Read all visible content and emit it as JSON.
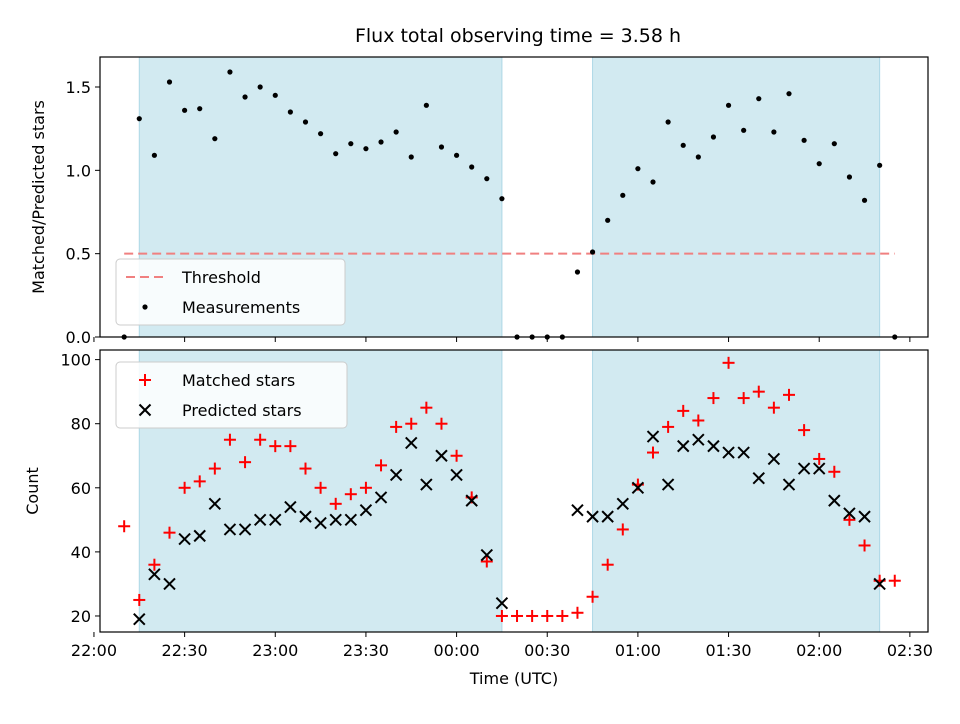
{
  "figure": {
    "title": "Flux total observing time = 3.58 h"
  },
  "colors": {
    "shade": "#add8e6",
    "threshold": "#f08080",
    "matched": "#ff0000",
    "predicted": "#000000",
    "measure": "#000000"
  },
  "chart_data": [
    {
      "type": "scatter",
      "ylabel": "Matched/Predicted stars",
      "xlim": [
        "22:02",
        "02:36"
      ],
      "ylim": [
        0,
        1.68
      ],
      "yticks": [
        "0.0",
        "0.5",
        "1.0",
        "1.5"
      ],
      "shaded_ranges": [
        [
          "22:15",
          "00:15"
        ],
        [
          "00:45",
          "02:20"
        ]
      ],
      "threshold": {
        "name": "Threshold",
        "y": 0.5,
        "x_range": [
          "22:10",
          "02:25"
        ]
      },
      "legend": {
        "position": "lower-left",
        "entries": [
          "Threshold",
          "Measurements"
        ]
      },
      "series": [
        {
          "name": "Measurements",
          "points": [
            [
              "22:10",
              0.0
            ],
            [
              "22:15",
              1.31
            ],
            [
              "22:20",
              1.09
            ],
            [
              "22:25",
              1.53
            ],
            [
              "22:30",
              1.36
            ],
            [
              "22:35",
              1.37
            ],
            [
              "22:40",
              1.19
            ],
            [
              "22:45",
              1.59
            ],
            [
              "22:50",
              1.44
            ],
            [
              "22:55",
              1.5
            ],
            [
              "23:00",
              1.45
            ],
            [
              "23:05",
              1.35
            ],
            [
              "23:10",
              1.29
            ],
            [
              "23:15",
              1.22
            ],
            [
              "23:20",
              1.1
            ],
            [
              "23:25",
              1.16
            ],
            [
              "23:30",
              1.13
            ],
            [
              "23:35",
              1.17
            ],
            [
              "23:40",
              1.23
            ],
            [
              "23:45",
              1.08
            ],
            [
              "23:50",
              1.39
            ],
            [
              "23:55",
              1.14
            ],
            [
              "00:00",
              1.09
            ],
            [
              "00:05",
              1.02
            ],
            [
              "00:10",
              0.95
            ],
            [
              "00:15",
              0.83
            ],
            [
              "00:20",
              0.0
            ],
            [
              "00:25",
              0.0
            ],
            [
              "00:30",
              0.0
            ],
            [
              "00:35",
              0.0
            ],
            [
              "00:40",
              0.39
            ],
            [
              "00:45",
              0.51
            ],
            [
              "00:50",
              0.7
            ],
            [
              "00:55",
              0.85
            ],
            [
              "01:00",
              1.01
            ],
            [
              "01:05",
              0.93
            ],
            [
              "01:10",
              1.29
            ],
            [
              "01:15",
              1.15
            ],
            [
              "01:20",
              1.08
            ],
            [
              "01:25",
              1.2
            ],
            [
              "01:30",
              1.39
            ],
            [
              "01:35",
              1.24
            ],
            [
              "01:40",
              1.43
            ],
            [
              "01:45",
              1.23
            ],
            [
              "01:50",
              1.46
            ],
            [
              "01:55",
              1.18
            ],
            [
              "02:00",
              1.04
            ],
            [
              "02:05",
              1.16
            ],
            [
              "02:10",
              0.96
            ],
            [
              "02:15",
              0.82
            ],
            [
              "02:20",
              1.03
            ],
            [
              "02:25",
              0.0
            ]
          ]
        }
      ]
    },
    {
      "type": "scatter",
      "xlabel": "Time (UTC)",
      "ylabel": "Count",
      "xlim": [
        "22:02",
        "02:36"
      ],
      "ylim": [
        15,
        103
      ],
      "xticks": [
        "22:00",
        "22:30",
        "23:00",
        "23:30",
        "00:00",
        "00:30",
        "01:00",
        "01:30",
        "02:00",
        "02:30"
      ],
      "yticks": [
        "20",
        "40",
        "60",
        "80",
        "100"
      ],
      "shaded_ranges": [
        [
          "22:15",
          "00:15"
        ],
        [
          "00:45",
          "02:20"
        ]
      ],
      "legend": {
        "position": "upper-left",
        "entries": [
          "Matched stars",
          "Predicted stars"
        ]
      },
      "series": [
        {
          "name": "Matched stars",
          "marker": "+",
          "points": [
            [
              "22:10",
              48
            ],
            [
              "22:15",
              25
            ],
            [
              "22:20",
              36
            ],
            [
              "22:25",
              46
            ],
            [
              "22:30",
              60
            ],
            [
              "22:35",
              62
            ],
            [
              "22:40",
              66
            ],
            [
              "22:45",
              75
            ],
            [
              "22:50",
              68
            ],
            [
              "22:55",
              75
            ],
            [
              "23:00",
              73
            ],
            [
              "23:05",
              73
            ],
            [
              "23:10",
              66
            ],
            [
              "23:15",
              60
            ],
            [
              "23:20",
              55
            ],
            [
              "23:25",
              58
            ],
            [
              "23:30",
              60
            ],
            [
              "23:35",
              67
            ],
            [
              "23:40",
              79
            ],
            [
              "23:45",
              80
            ],
            [
              "23:50",
              85
            ],
            [
              "23:55",
              80
            ],
            [
              "00:00",
              70
            ],
            [
              "00:05",
              57
            ],
            [
              "00:10",
              37
            ],
            [
              "00:15",
              20
            ],
            [
              "00:20",
              20
            ],
            [
              "00:25",
              20
            ],
            [
              "00:30",
              20
            ],
            [
              "00:35",
              20
            ],
            [
              "00:40",
              21
            ],
            [
              "00:45",
              26
            ],
            [
              "00:50",
              36
            ],
            [
              "00:55",
              47
            ],
            [
              "01:00",
              61
            ],
            [
              "01:05",
              71
            ],
            [
              "01:10",
              79
            ],
            [
              "01:15",
              84
            ],
            [
              "01:20",
              81
            ],
            [
              "01:25",
              88
            ],
            [
              "01:30",
              99
            ],
            [
              "01:35",
              88
            ],
            [
              "01:40",
              90
            ],
            [
              "01:45",
              85
            ],
            [
              "01:50",
              89
            ],
            [
              "01:55",
              78
            ],
            [
              "02:00",
              69
            ],
            [
              "02:05",
              65
            ],
            [
              "02:10",
              50
            ],
            [
              "02:15",
              42
            ],
            [
              "02:20",
              31
            ],
            [
              "02:25",
              31
            ]
          ]
        },
        {
          "name": "Predicted stars",
          "marker": "x",
          "points": [
            [
              "22:15",
              19
            ],
            [
              "22:20",
              33
            ],
            [
              "22:25",
              30
            ],
            [
              "22:30",
              44
            ],
            [
              "22:35",
              45
            ],
            [
              "22:40",
              55
            ],
            [
              "22:45",
              47
            ],
            [
              "22:50",
              47
            ],
            [
              "22:55",
              50
            ],
            [
              "23:00",
              50
            ],
            [
              "23:05",
              54
            ],
            [
              "23:10",
              51
            ],
            [
              "23:15",
              49
            ],
            [
              "23:20",
              50
            ],
            [
              "23:25",
              50
            ],
            [
              "23:30",
              53
            ],
            [
              "23:35",
              57
            ],
            [
              "23:40",
              64
            ],
            [
              "23:45",
              74
            ],
            [
              "23:50",
              61
            ],
            [
              "23:55",
              70
            ],
            [
              "00:00",
              64
            ],
            [
              "00:05",
              56
            ],
            [
              "00:10",
              39
            ],
            [
              "00:15",
              24
            ],
            [
              "00:40",
              53
            ],
            [
              "00:45",
              51
            ],
            [
              "00:50",
              51
            ],
            [
              "00:55",
              55
            ],
            [
              "01:00",
              60
            ],
            [
              "01:05",
              76
            ],
            [
              "01:10",
              61
            ],
            [
              "01:15",
              73
            ],
            [
              "01:20",
              75
            ],
            [
              "01:25",
              73
            ],
            [
              "01:30",
              71
            ],
            [
              "01:35",
              71
            ],
            [
              "01:40",
              63
            ],
            [
              "01:45",
              69
            ],
            [
              "01:50",
              61
            ],
            [
              "01:55",
              66
            ],
            [
              "02:00",
              66
            ],
            [
              "02:05",
              56
            ],
            [
              "02:10",
              52
            ],
            [
              "02:15",
              51
            ],
            [
              "02:20",
              30
            ]
          ]
        }
      ]
    }
  ]
}
